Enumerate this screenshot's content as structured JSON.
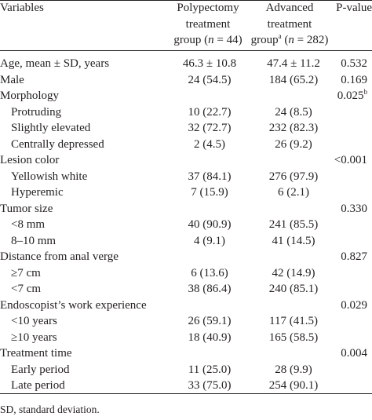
{
  "headers": {
    "variables": "Variables",
    "polypectomy": [
      "Polypectomy",
      "treatment",
      "group (",
      "n",
      " = 44)"
    ],
    "advanced": [
      "Advanced",
      "treatment",
      "group",
      "a",
      " (",
      "n",
      " = 282)"
    ],
    "pvalue": "P-value"
  },
  "rows": [
    {
      "label": "Age, mean ± SD, years",
      "poly": "46.3 ± 10.8",
      "adv": "47.4 ± 11.2",
      "p": "0.532",
      "sub": false
    },
    {
      "label": "Male",
      "poly": "24 (54.5)",
      "adv": "184 (65.2)",
      "p": "0.169",
      "sub": false
    },
    {
      "label": "Morphology",
      "poly": "",
      "adv": "",
      "p": "0.025",
      "p_sup": "b",
      "sub": false
    },
    {
      "label": "Protruding",
      "poly": "10 (22.7)",
      "adv": "24 (8.5)",
      "p": "",
      "sub": true
    },
    {
      "label": "Slightly elevated",
      "poly": "32 (72.7)",
      "adv": "232 (82.3)",
      "p": "",
      "sub": true
    },
    {
      "label": "Centrally depressed",
      "poly": "2 (4.5)",
      "adv": "26 (9.2)",
      "p": "",
      "sub": true
    },
    {
      "label": "Lesion color",
      "poly": "",
      "adv": "",
      "p": "<0.001",
      "sub": false
    },
    {
      "label": "Yellowish white",
      "poly": "37 (84.1)",
      "adv": "276 (97.9)",
      "p": "",
      "sub": true
    },
    {
      "label": "Hyperemic",
      "poly": "7 (15.9)",
      "adv": "6 (2.1)",
      "p": "",
      "sub": true
    },
    {
      "label": "Tumor size",
      "poly": "",
      "adv": "",
      "p": "0.330",
      "sub": false
    },
    {
      "label": "<8 mm",
      "poly": "40 (90.9)",
      "adv": "241 (85.5)",
      "p": "",
      "sub": true
    },
    {
      "label": "8–10 mm",
      "poly": "4 (9.1)",
      "adv": "41 (14.5)",
      "p": "",
      "sub": true
    },
    {
      "label": "Distance from anal verge",
      "poly": "",
      "adv": "",
      "p": "0.827",
      "sub": false
    },
    {
      "label": "≥7 cm",
      "poly": "6 (13.6)",
      "adv": "42 (14.9)",
      "p": "",
      "sub": true
    },
    {
      "label": "<7 cm",
      "poly": "38 (86.4)",
      "adv": "240 (85.1)",
      "p": "",
      "sub": true
    },
    {
      "label": "Endoscopist’s work experience",
      "poly": "",
      "adv": "",
      "p": "0.029",
      "sub": false
    },
    {
      "label": "<10 years",
      "poly": "26 (59.1)",
      "adv": "117 (41.5)",
      "p": "",
      "sub": true
    },
    {
      "label": "≥10 years",
      "poly": "18 (40.9)",
      "adv": "165 (58.5)",
      "p": "",
      "sub": true
    },
    {
      "label": "Treatment time",
      "poly": "",
      "adv": "",
      "p": "0.004",
      "sub": false
    },
    {
      "label": "Early period",
      "poly": "11 (25.0)",
      "adv": "28 (9.9)",
      "p": "",
      "sub": true
    },
    {
      "label": "Late period",
      "poly": "33 (75.0)",
      "adv": "254 (90.1)",
      "p": "",
      "sub": true
    }
  ],
  "footnote": "SD, standard deviation."
}
